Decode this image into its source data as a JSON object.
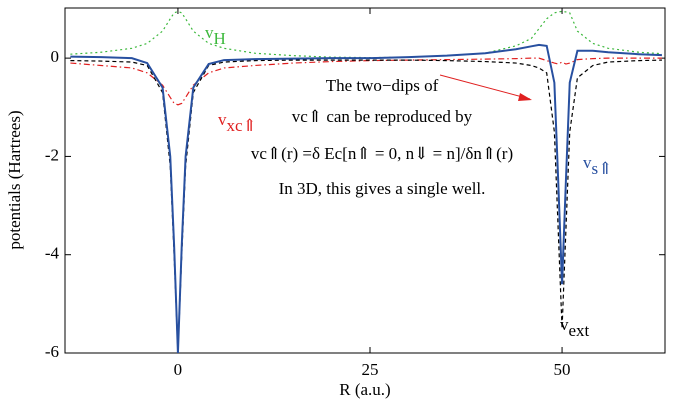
{
  "chart_data": {
    "type": "line",
    "xlabel": "R (a.u.)",
    "ylabel": "potentials (Hartrees)",
    "xlim": [
      -14.7,
      63.4
    ],
    "ylim": [
      -6,
      1.02
    ],
    "xticks": [
      0,
      25,
      50
    ],
    "yticks": [
      -6,
      -4,
      -2,
      0
    ],
    "x": [
      -14,
      -10,
      -6,
      -4,
      -2,
      -1,
      -0.5,
      0,
      0.5,
      1,
      2,
      4,
      6,
      10,
      15,
      20,
      25,
      30,
      35,
      40,
      44,
      46,
      47,
      48,
      49,
      49.5,
      50,
      50.5,
      51,
      52,
      54,
      56,
      60,
      63
    ],
    "series": [
      {
        "name": "vH",
        "color": "#3cb83c",
        "dash": "2,3",
        "values": [
          0.08,
          0.12,
          0.2,
          0.3,
          0.55,
          0.8,
          0.92,
          0.95,
          0.92,
          0.8,
          0.55,
          0.3,
          0.2,
          0.1,
          0.05,
          0.02,
          0.01,
          0.02,
          0.05,
          0.1,
          0.25,
          0.4,
          0.6,
          0.8,
          0.92,
          0.94,
          0.95,
          0.94,
          0.92,
          0.55,
          0.3,
          0.2,
          0.12,
          0.09
        ]
      },
      {
        "name": "vxc",
        "color": "#e02020",
        "dash": "6,3,1.5,3",
        "values": [
          -0.1,
          -0.15,
          -0.2,
          -0.3,
          -0.55,
          -0.8,
          -0.92,
          -0.95,
          -0.92,
          -0.8,
          -0.55,
          -0.3,
          -0.2,
          -0.15,
          -0.1,
          -0.07,
          -0.05,
          -0.04,
          -0.03,
          -0.02,
          -0.01,
          0,
          0,
          -0.05,
          -0.1,
          -0.12,
          -0.08,
          -0.12,
          -0.1,
          -0.03,
          -0.01,
          0,
          0,
          0
        ]
      },
      {
        "name": "vext",
        "color": "#000000",
        "dash": "4,3",
        "values": [
          -0.05,
          -0.06,
          -0.08,
          -0.15,
          -0.7,
          -2.2,
          -4.0,
          -6,
          -4.0,
          -2.2,
          -0.7,
          -0.15,
          -0.08,
          -0.05,
          -0.04,
          -0.04,
          -0.04,
          -0.04,
          -0.05,
          -0.07,
          -0.1,
          -0.15,
          -0.2,
          -0.3,
          -1.5,
          -3.5,
          -5.5,
          -3.5,
          -1.5,
          -0.4,
          -0.15,
          -0.08,
          -0.05,
          -0.04
        ]
      },
      {
        "name": "vs",
        "color": "#2850a0",
        "dash": "",
        "values": [
          0.03,
          0.02,
          0,
          -0.1,
          -0.6,
          -2.0,
          -3.8,
          -6,
          -3.8,
          -2.0,
          -0.6,
          -0.12,
          -0.04,
          -0.02,
          -0.01,
          0,
          0,
          0.02,
          0.05,
          0.1,
          0.18,
          0.24,
          0.27,
          0.25,
          -0.5,
          -2.5,
          -4.6,
          -2.5,
          -0.5,
          0.15,
          0.15,
          0.12,
          0.08,
          0.06
        ]
      }
    ],
    "annotations": [
      {
        "text": "v",
        "sub": "H",
        "color": "#3cb83c"
      },
      {
        "text": "v",
        "sub": "xc⇑",
        "color": "#e02020"
      },
      {
        "text": "v",
        "sub": "s⇑",
        "color": "#2850a0"
      },
      {
        "text": "v",
        "sub": "ext",
        "color": "#000000"
      }
    ],
    "note": [
      "The two−dips of",
      "vc⇑ can be reproduced by",
      "vc⇑(r) =δ Ec[n⇑ = 0, n⇓ = n]/δn⇑(r)",
      "In 3D, this gives a single well."
    ]
  }
}
